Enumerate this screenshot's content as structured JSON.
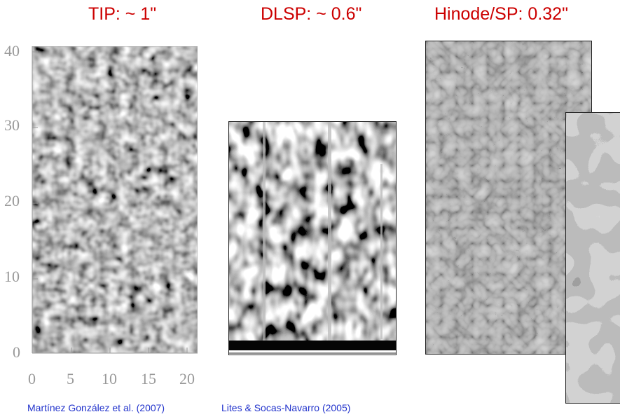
{
  "titles": {
    "tip": "TIP: ~ 1\"",
    "dlsp": "DLSP: ~ 0.6\"",
    "hinode": "Hinode/SP: 0.32\""
  },
  "axes": {
    "y_ticks": [
      "40",
      "30",
      "20",
      "10",
      "0"
    ],
    "x_ticks": [
      "0",
      "5",
      "10",
      "15",
      "20"
    ]
  },
  "citations": {
    "tip": "Martínez González et al. (2007)",
    "dlsp": "Lites & Socas-Navarro (2005)"
  },
  "colors": {
    "title": "#cc0000",
    "citation": "#2233cc",
    "axis": "#999999"
  }
}
